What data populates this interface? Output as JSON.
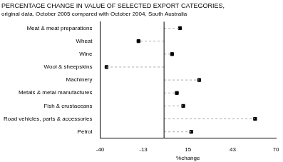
{
  "chart_data": {
    "type": "dot",
    "orientation": "horizontal",
    "title": "PERCENTAGE CHANGE IN VALUE OF SELECTED EXPORT CATEGORIES,",
    "subtitle": "original data, October 2005 compared with October 2004, South Australia",
    "categories": [
      "Meat & meat preparations",
      "Wheat",
      "Wine",
      "Wool & sheepskins",
      "Machinery",
      "Metals & metal manufactures",
      "Fish & crustaceans",
      "Road vehicles, parts & accessories",
      "Petrol"
    ],
    "values": [
      10,
      -16,
      5,
      -36,
      22,
      8,
      12,
      57,
      17
    ],
    "color": "#000000",
    "marker": "square",
    "line_style": "dashed",
    "xlabel": "%change",
    "xlim": [
      -40,
      70
    ],
    "xticks": [
      -40,
      -13,
      15,
      43,
      70
    ],
    "grid": false
  }
}
